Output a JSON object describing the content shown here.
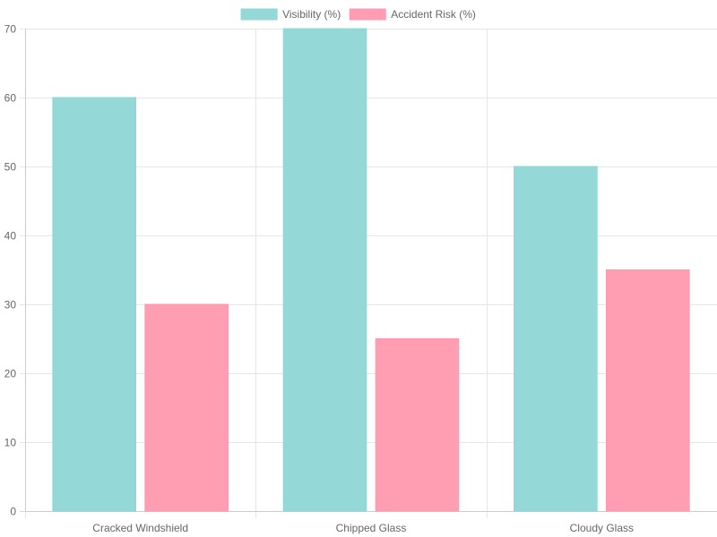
{
  "chart_data": {
    "type": "bar",
    "categories": [
      "Cracked Windshield",
      "Chipped Glass",
      "Cloudy Glass"
    ],
    "series": [
      {
        "name": "Visibility (%)",
        "values": [
          60,
          70,
          50
        ],
        "fill": "#94d9d8",
        "stroke": "#8fd6d5"
      },
      {
        "name": "Accident Risk (%)",
        "values": [
          30,
          25,
          35
        ],
        "fill": "#ff9db3",
        "stroke": "#ff99b0"
      }
    ],
    "ylim": [
      0,
      70
    ],
    "yticks": [
      0,
      10,
      20,
      30,
      40,
      50,
      60,
      70
    ],
    "grid": true,
    "legend": "top-center",
    "title": "",
    "xlabel": "",
    "ylabel": ""
  }
}
